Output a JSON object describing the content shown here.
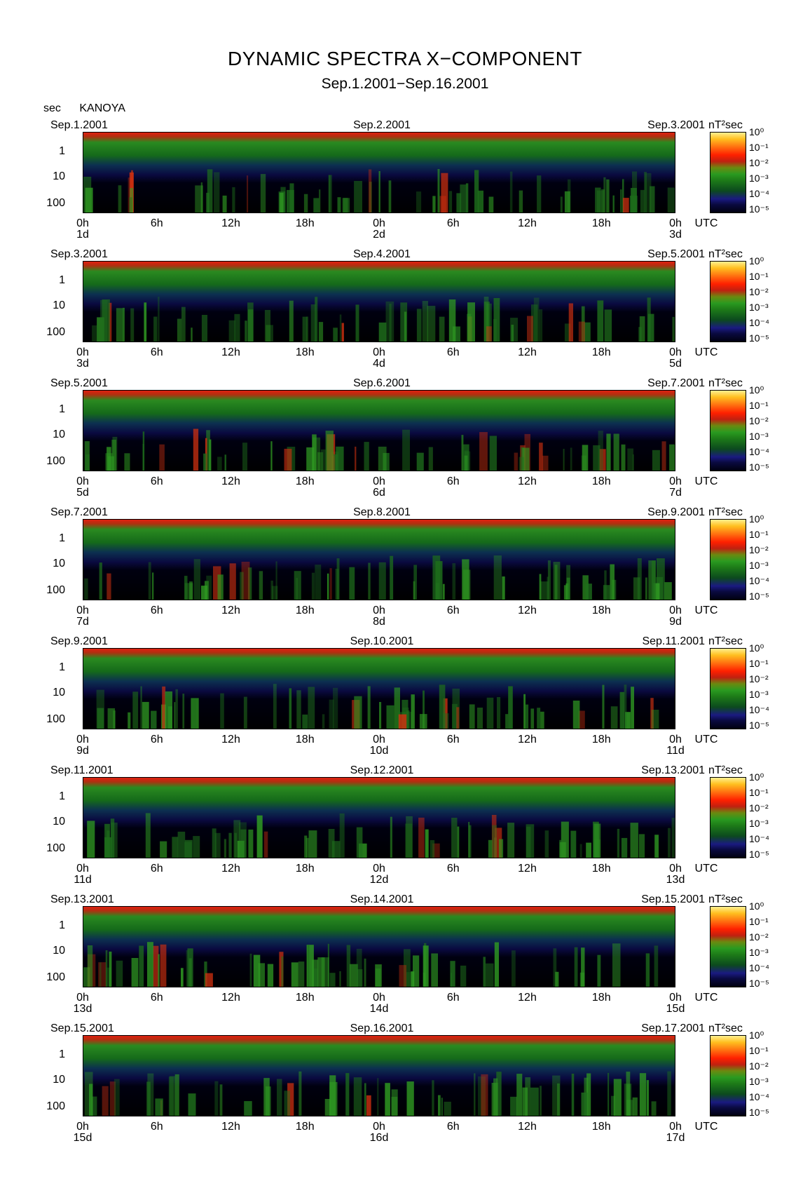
{
  "header": {
    "title": "DYNAMIC SPECTRA X−COMPONENT",
    "subtitle": "Sep.1.2001−Sep.16.2001",
    "y_unit": "sec",
    "station": "KANOYA"
  },
  "axis": {
    "y_ticks": [
      "1",
      "10",
      "100"
    ],
    "x_ticks": [
      "0h",
      "6h",
      "12h",
      "18h",
      "0h",
      "6h",
      "12h",
      "18h",
      "0h"
    ],
    "x_unit": "UTC",
    "power_unit": "nT²sec",
    "colorbar_ticks": [
      "10⁰",
      "10⁻¹",
      "10⁻²",
      "10⁻³",
      "10⁻⁴",
      "10⁻⁵"
    ]
  },
  "colors": {
    "background": "#000000",
    "low": "#1a1a80",
    "mid": "#1d7a18",
    "high": "#ff2000",
    "peak": "#fff090"
  },
  "chart_data": {
    "type": "heatmap",
    "title": "DYNAMIC SPECTRA X−COMPONENT",
    "subtitle": "Sep.1.2001−Sep.16.2001",
    "ylabel": "sec",
    "y_scale": "log",
    "colorbar_scale": "log",
    "colorbar_range": [
      "10^-5",
      "10^0"
    ],
    "panels": [
      {
        "left": "Sep.1.2001",
        "mid": "Sep.2.2001",
        "right": "Sep.3.2001",
        "days": [
          "1d",
          "2d",
          "3d"
        ]
      },
      {
        "left": "Sep.3.2001",
        "mid": "Sep.4.2001",
        "right": "Sep.5.2001",
        "days": [
          "3d",
          "4d",
          "5d"
        ]
      },
      {
        "left": "Sep.5.2001",
        "mid": "Sep.6.2001",
        "right": "Sep.7.2001",
        "days": [
          "5d",
          "6d",
          "7d"
        ]
      },
      {
        "left": "Sep.7.2001",
        "mid": "Sep.8.2001",
        "right": "Sep.9.2001",
        "days": [
          "7d",
          "8d",
          "9d"
        ]
      },
      {
        "left": "Sep.9.2001",
        "mid": "Sep.10.2001",
        "right": "Sep.11.2001",
        "days": [
          "9d",
          "10d",
          "11d"
        ]
      },
      {
        "left": "Sep.11.2001",
        "mid": "Sep.12.2001",
        "right": "Sep.13.2001",
        "days": [
          "11d",
          "12d",
          "13d"
        ]
      },
      {
        "left": "Sep.13.2001",
        "mid": "Sep.14.2001",
        "right": "Sep.15.2001",
        "days": [
          "13d",
          "14d",
          "15d"
        ]
      },
      {
        "left": "Sep.15.2001",
        "mid": "Sep.16.2001",
        "right": "Sep.17.2001",
        "days": [
          "15d",
          "16d",
          "17d"
        ]
      }
    ]
  }
}
